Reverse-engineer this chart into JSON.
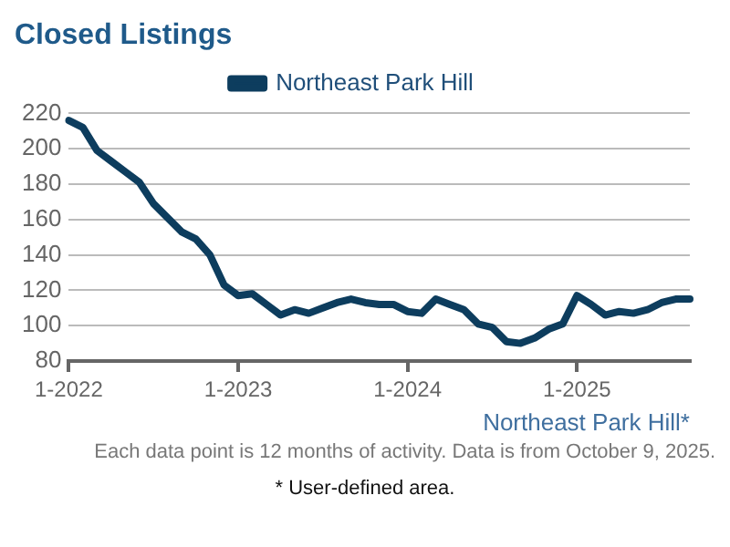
{
  "chart_data": {
    "type": "line",
    "title": "Closed Listings",
    "xlabel": "Northeast Park Hill*",
    "categories": [
      "1-2022",
      null,
      null,
      null,
      null,
      null,
      null,
      null,
      null,
      null,
      null,
      null,
      "1-2023",
      null,
      null,
      null,
      null,
      null,
      null,
      null,
      null,
      null,
      null,
      null,
      "1-2024",
      null,
      null,
      null,
      null,
      null,
      null,
      null,
      null,
      null,
      null,
      null,
      "1-2025",
      null,
      null,
      null,
      null,
      null,
      null,
      null,
      null
    ],
    "series": [
      {
        "name": "Northeast Park Hill",
        "color": "#0d3d5e",
        "values": [
          216,
          212,
          199,
          193,
          187,
          181,
          169,
          161,
          153,
          149,
          140,
          123,
          117,
          118,
          112,
          106,
          109,
          107,
          110,
          113,
          115,
          113,
          112,
          112,
          108,
          107,
          115,
          112,
          109,
          101,
          99,
          91,
          90,
          93,
          98,
          101,
          117,
          112,
          106,
          108,
          107,
          109,
          113,
          115,
          115
        ]
      }
    ],
    "ylim": [
      80,
      220
    ],
    "yticks": [
      80,
      100,
      120,
      140,
      160,
      180,
      200,
      220
    ],
    "grid": "y",
    "legend": "top",
    "marker": "none",
    "line_style": "solid",
    "annotations": [
      "Each data point is 12 months of activity. Data is from October 9, 2025.",
      "* User-defined area."
    ]
  }
}
